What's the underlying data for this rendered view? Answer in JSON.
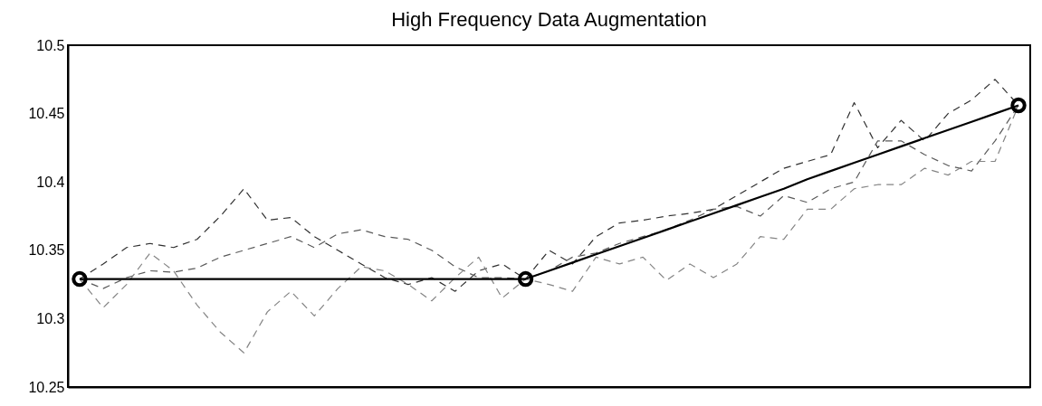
{
  "chart_data": {
    "type": "line",
    "title": "High Frequency Data Augmentation",
    "categories": [
      null,
      null,
      null,
      null,
      null,
      null,
      null,
      null,
      null,
      null,
      null,
      null,
      null,
      null,
      null,
      null,
      null,
      null,
      null,
      null,
      null,
      null,
      null,
      null,
      null,
      null,
      null,
      null,
      null,
      null,
      null,
      null,
      null,
      null,
      null,
      null,
      null,
      null,
      null,
      null,
      null
    ],
    "series": [
      {
        "color": "#303030",
        "line_style": "dashed",
        "values": [
          10.329,
          10.34,
          10.352,
          10.355,
          10.352,
          10.358,
          10.375,
          10.395,
          10.372,
          10.374,
          10.36,
          10.35,
          10.34,
          10.33,
          10.325,
          10.33,
          10.32,
          10.335,
          10.34,
          10.329,
          10.35,
          10.34,
          10.36,
          10.37,
          10.372,
          10.375,
          10.377,
          10.38,
          10.39,
          10.4,
          10.41,
          10.415,
          10.42,
          10.458,
          10.425,
          10.445,
          10.43,
          10.45,
          10.46,
          10.475,
          10.456
        ]
      },
      {
        "color": "#5a5a5a",
        "line_style": "dashed",
        "values": [
          10.329,
          10.322,
          10.33,
          10.335,
          10.334,
          10.337,
          10.345,
          10.35,
          10.355,
          10.36,
          10.352,
          10.362,
          10.365,
          10.36,
          10.358,
          10.35,
          10.338,
          10.33,
          10.33,
          10.329,
          10.335,
          10.345,
          10.348,
          10.355,
          10.36,
          10.365,
          10.372,
          10.38,
          10.382,
          10.375,
          10.39,
          10.385,
          10.395,
          10.4,
          10.43,
          10.43,
          10.42,
          10.412,
          10.408,
          10.43,
          10.456
        ]
      },
      {
        "color": "#848484",
        "line_style": "dashed",
        "values": [
          10.329,
          10.308,
          10.325,
          10.348,
          10.335,
          10.31,
          10.29,
          10.275,
          10.305,
          10.32,
          10.302,
          10.322,
          10.338,
          10.335,
          10.325,
          10.313,
          10.33,
          10.345,
          10.315,
          10.329,
          10.325,
          10.32,
          10.345,
          10.34,
          10.345,
          10.328,
          10.34,
          10.33,
          10.34,
          10.36,
          10.358,
          10.38,
          10.38,
          10.395,
          10.398,
          10.398,
          10.41,
          10.405,
          10.415,
          10.415,
          10.456
        ]
      },
      {
        "color": "#000000",
        "line_style": "solid",
        "values": [
          10.329,
          10.329,
          10.329,
          10.329,
          10.329,
          10.329,
          10.329,
          10.329,
          10.329,
          10.329,
          10.329,
          10.329,
          10.329,
          10.329,
          10.329,
          10.329,
          10.329,
          10.329,
          10.329,
          10.329,
          10.335,
          10.341,
          10.347,
          10.353,
          10.359,
          10.365,
          10.371,
          10.377,
          10.383,
          10.389,
          10.395,
          10.402,
          10.408,
          10.414,
          10.42,
          10.426,
          10.432,
          10.438,
          10.444,
          10.45,
          10.456
        ]
      },
      {
        "type": "scatter",
        "color": "#000000",
        "marker": "circle",
        "values": [
          10.329,
          null,
          null,
          null,
          null,
          null,
          null,
          null,
          null,
          null,
          null,
          null,
          null,
          null,
          null,
          null,
          null,
          null,
          null,
          10.329,
          null,
          null,
          null,
          null,
          null,
          null,
          null,
          null,
          null,
          null,
          null,
          null,
          null,
          null,
          null,
          null,
          null,
          null,
          null,
          null,
          10.456
        ]
      }
    ],
    "ylim": [
      10.25,
      10.5
    ],
    "yticks": [
      10.25,
      10.3,
      10.35,
      10.4,
      10.45,
      10.5
    ],
    "tick_labels": "y",
    "grid": false
  }
}
